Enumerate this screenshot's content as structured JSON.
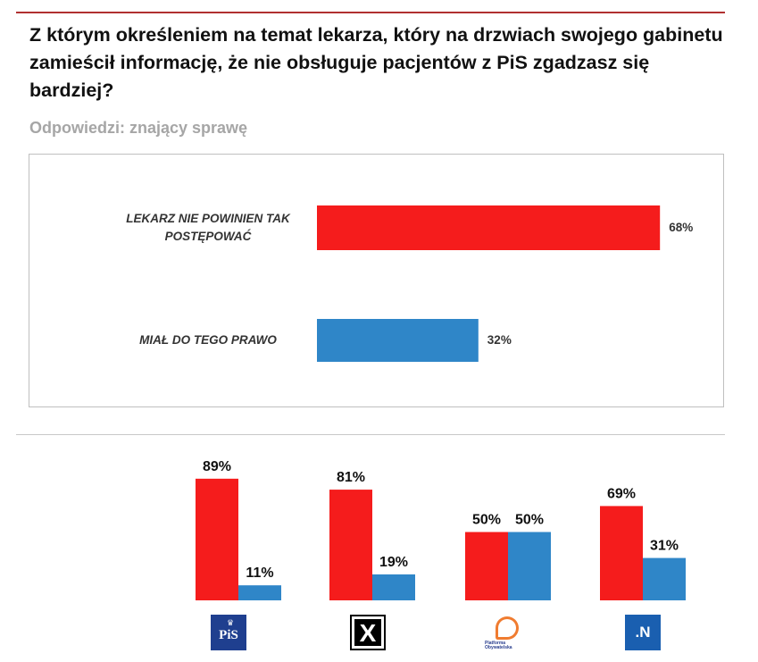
{
  "title": "Z którym określeniem na temat lekarza, który na drzwiach swojego gabinetu zamieścił informację, że nie obsługuje pacjentów z PiS zgadzasz się bardziej?",
  "subtitle": "Odpowiedzi: znający sprawę",
  "chart_data": [
    {
      "type": "bar",
      "orientation": "horizontal",
      "categories": [
        "LEKARZ NIE POWINIEN TAK POSTĘPOWAĆ",
        "MIAŁ DO TEGO PRAWO"
      ],
      "values": [
        68,
        32
      ],
      "value_labels": [
        "68%",
        "32%"
      ],
      "colors": [
        "#f51c1c",
        "#2f86c8"
      ],
      "xlim": [
        0,
        100
      ]
    },
    {
      "type": "bar",
      "categories": [
        "PiS",
        "Kukiz'15",
        "Platforma Obywatelska",
        ".N"
      ],
      "series": [
        {
          "name": "LEKARZ NIE POWINIEN TAK POSTĘPOWAĆ",
          "values": [
            89,
            81,
            50,
            69
          ],
          "labels": [
            "89%",
            "81%",
            "50%",
            "69%"
          ],
          "color": "#f51c1c"
        },
        {
          "name": "MIAŁ DO TEGO PRAWO",
          "values": [
            11,
            19,
            50,
            31
          ],
          "labels": [
            "11%",
            "19%",
            "50%",
            "31%"
          ],
          "color": "#2f86c8"
        }
      ],
      "ylim": [
        0,
        100
      ]
    }
  ],
  "logos": {
    "pis": "PiS",
    "kukiz": "K",
    "po": "Platforma Obywatelska",
    "n": ".N"
  }
}
